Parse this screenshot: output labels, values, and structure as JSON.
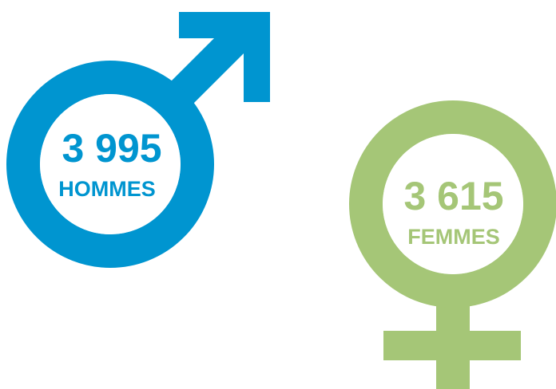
{
  "groups": [
    {
      "number": "3 995",
      "label": "HOMMES"
    },
    {
      "number": "3 615",
      "label": "FEMMES"
    }
  ]
}
